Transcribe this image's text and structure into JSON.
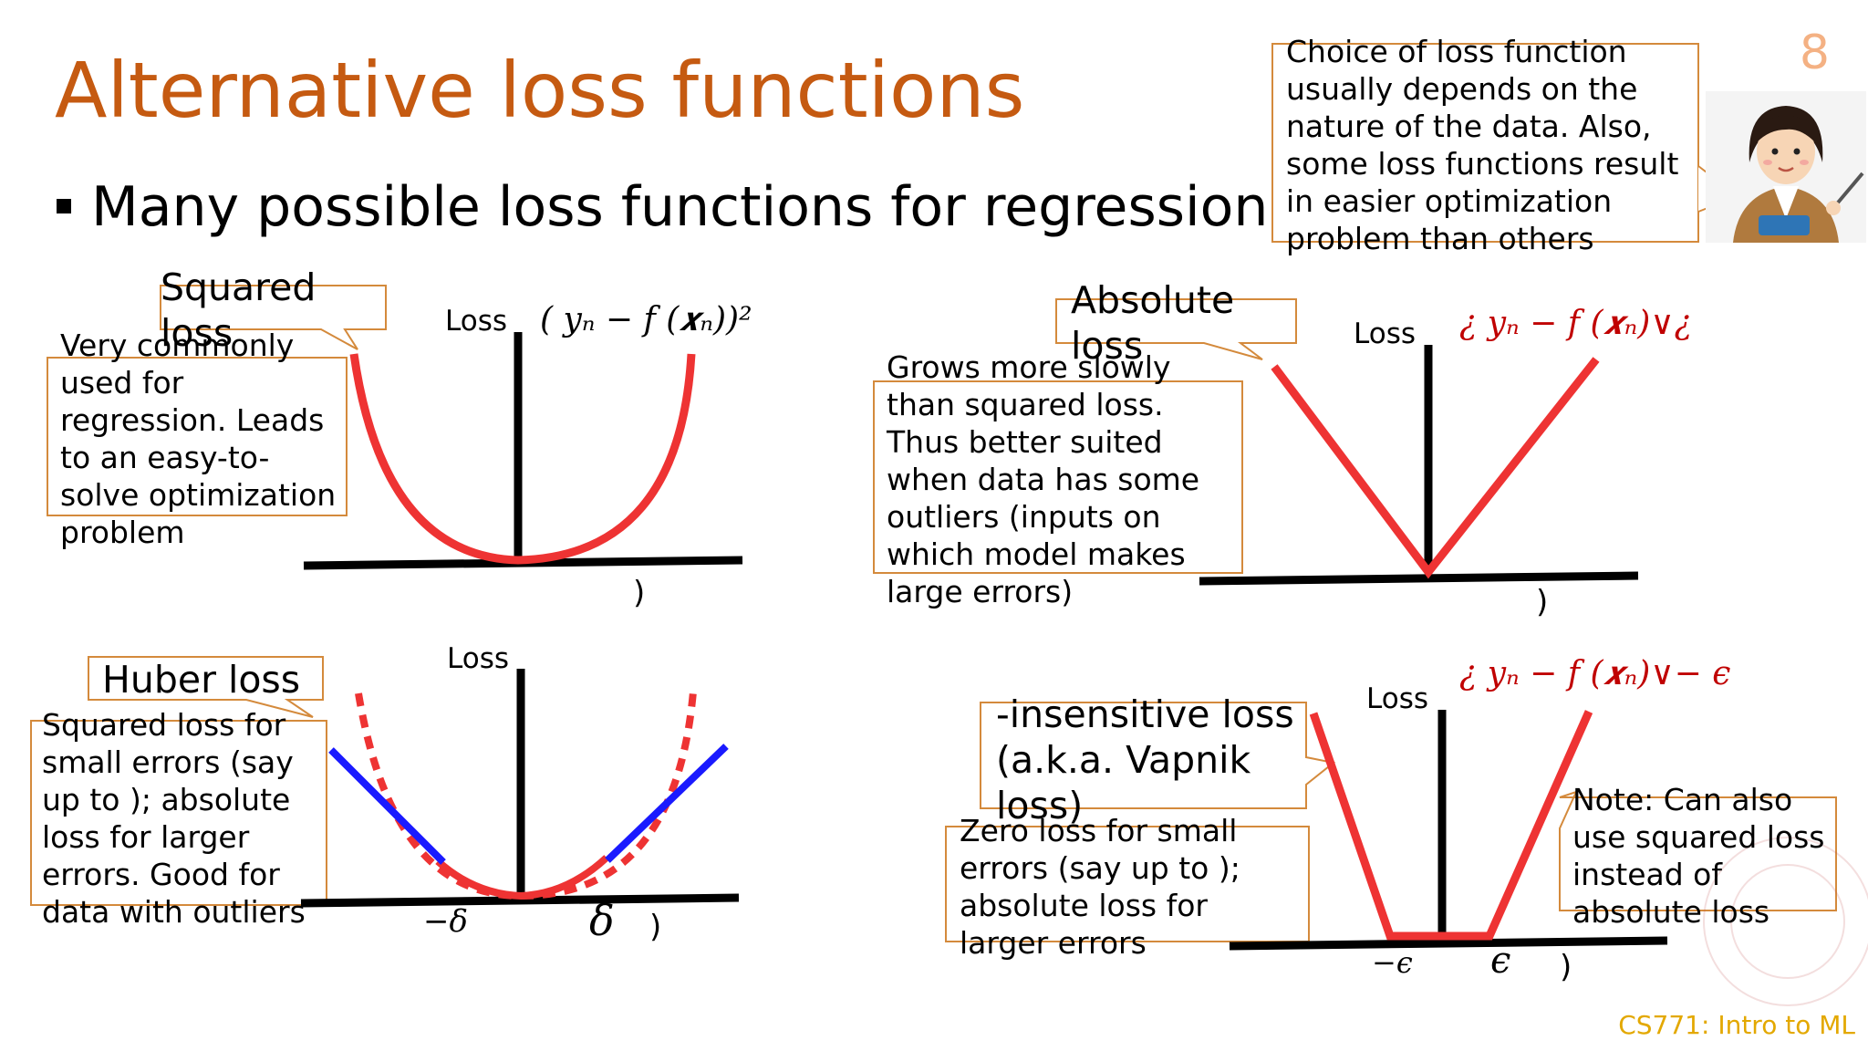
{
  "title": "Alternative loss functions",
  "page_number": "8",
  "bullet": "Many possible loss functions for regression pr",
  "teacher_note": "Choice of loss function\nusually depends on the\nnature of the data. Also,\nsome loss functions result\nin easier optimization\nproblem than others",
  "panels": {
    "squared": {
      "name": "Squared\nloss",
      "description": "Very commonly\nused for\nregression. Leads\nto an easy-to-\nsolve optimization\nproblem",
      "axis_label": "Loss",
      "formula": "( yₙ − f (𝒙ₙ))²",
      "paren": ")"
    },
    "absolute": {
      "name": "Absolute\nloss",
      "description": "Grows more slowly\nthan squared loss.\nThus better suited\nwhen data has some\noutliers (inputs on\nwhich model makes\nlarge errors)",
      "axis_label": "Loss",
      "formula": "¿ yₙ − f (𝒙ₙ)∨¿",
      "paren": ")"
    },
    "huber": {
      "name": "Huber loss",
      "description": "Squared loss for\nsmall errors (say\nup to ); absolute\nloss for larger\nerrors. Good for\ndata with outliers",
      "axis_label": "Loss",
      "neg_delta": "−δ",
      "delta": "δ",
      "paren": ")"
    },
    "eps_insensitive": {
      "name": "-insensitive loss\n(a.k.a. Vapnik\nloss)",
      "description": "Zero loss for small\nerrors (say up to );\nabsolute loss for\nlarger errors",
      "note": "Note: Can also\nuse squared loss\ninstead of\nabsolute loss",
      "axis_label": "Loss",
      "formula": "¿ yₙ − f (𝒙ₙ)∨− ϵ",
      "neg_eps": "−ϵ",
      "eps": "ϵ",
      "paren": ")"
    }
  },
  "footer": "CS771: Intro to ML",
  "colors": {
    "title": "#c55a11",
    "callout_border": "#d48a3c",
    "loss_curve": "#ee3333",
    "linear_part": "#1a1aff",
    "footer": "#e3a800"
  }
}
